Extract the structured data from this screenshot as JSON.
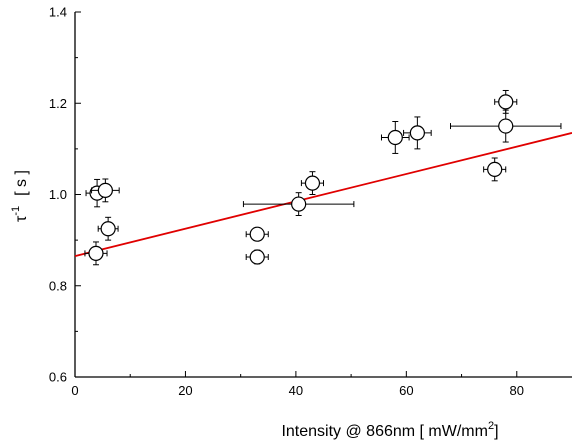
{
  "chart_data": {
    "type": "scatter",
    "title": "",
    "xlabel_main": "Intensity @ 866nm  [ mW/mm",
    "xlabel_sup": "2",
    "xlabel_end": "]",
    "ylabel_main": "τ",
    "ylabel_sup": "-1",
    "ylabel_end": "[ s ]",
    "xlim": [
      0,
      90
    ],
    "ylim": [
      0.6,
      1.4
    ],
    "x_ticks": [
      0,
      20,
      40,
      60,
      80
    ],
    "y_ticks": [
      0.6,
      0.8,
      1.0,
      1.2,
      1.4
    ],
    "x_tick_labels": [
      "0",
      "20",
      "40",
      "60",
      "80"
    ],
    "y_tick_labels": [
      "0.6",
      "0.8",
      "1.0",
      "1.2",
      "1.4"
    ],
    "grid": false,
    "series": [
      {
        "marker": "open-circle",
        "color": "#000000",
        "points": [
          {
            "x": 4.0,
            "y": 1.003,
            "xerr": 2.0,
            "yerr": 0.03
          },
          {
            "x": 5.5,
            "y": 1.009,
            "xerr": 2.5,
            "yerr": 0.025
          },
          {
            "x": 6.0,
            "y": 0.925,
            "xerr": 1.8,
            "yerr": 0.025
          },
          {
            "x": 3.8,
            "y": 0.871,
            "xerr": 2.0,
            "yerr": 0.025
          },
          {
            "x": 33.0,
            "y": 0.913,
            "xerr": 2.0,
            "yerr": 0.01
          },
          {
            "x": 33.0,
            "y": 0.863,
            "xerr": 2.0,
            "yerr": 0.015
          },
          {
            "x": 40.5,
            "y": 0.979,
            "xerr": 10.0,
            "yerr": 0.025
          },
          {
            "x": 43.0,
            "y": 1.025,
            "xerr": 2.0,
            "yerr": 0.025
          },
          {
            "x": 58.0,
            "y": 1.125,
            "xerr": 2.5,
            "yerr": 0.035
          },
          {
            "x": 62.0,
            "y": 1.135,
            "xerr": 2.5,
            "yerr": 0.035
          },
          {
            "x": 76.0,
            "y": 1.055,
            "xerr": 2.0,
            "yerr": 0.025
          },
          {
            "x": 78.0,
            "y": 1.203,
            "xerr": 2.0,
            "yerr": 0.025
          },
          {
            "x": 78.0,
            "y": 1.15,
            "xerr": 10.0,
            "yerr": 0.035
          }
        ]
      }
    ],
    "fit_line": {
      "color": "#e00000",
      "x": [
        0,
        90
      ],
      "y": [
        0.865,
        1.135
      ]
    }
  }
}
